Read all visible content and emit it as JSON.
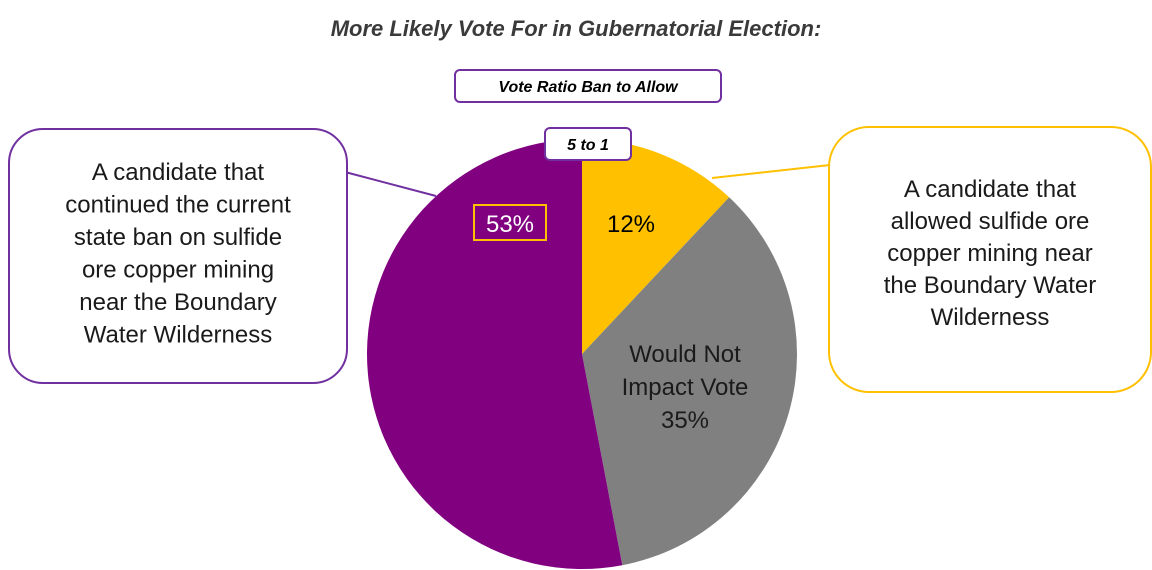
{
  "chart_data": {
    "type": "pie",
    "title": "More Likely Vote For in Gubernatorial Election:",
    "ratio_box": {
      "heading": "Vote Ratio Ban to Allow",
      "value": "5 to 1"
    },
    "slices": [
      {
        "key": "allow",
        "value": 12,
        "label": "12%",
        "color": "#FFC000"
      },
      {
        "key": "no_impact",
        "value": 35,
        "label_lines": [
          "Would Not",
          "Impact Vote",
          "35%"
        ],
        "color": "#808080"
      },
      {
        "key": "ban",
        "value": 53,
        "label": "53%",
        "color": "#800080"
      }
    ],
    "callouts": {
      "ban": {
        "lines": [
          "A candidate that",
          "continued the current",
          "state ban on sulfide",
          "ore copper mining",
          "near the Boundary",
          "Water Wilderness"
        ],
        "border_color": "#7030A0"
      },
      "allow": {
        "lines": [
          "A candidate that",
          "allowed sulfide ore",
          "copper mining near",
          "the Boundary Water",
          "Wilderness"
        ],
        "border_color": "#FFC000"
      }
    }
  }
}
